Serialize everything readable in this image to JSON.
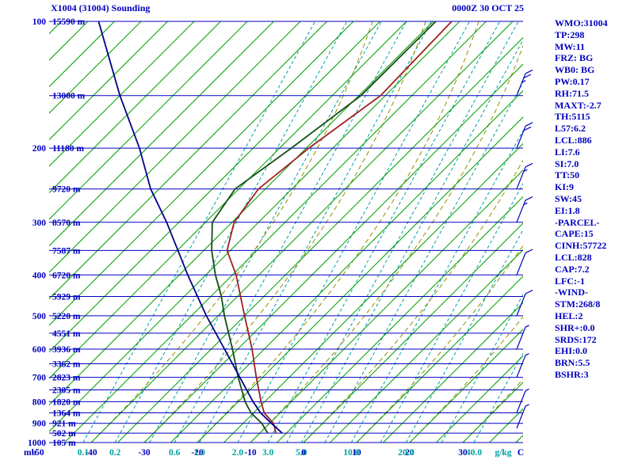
{
  "header": {
    "title": "X1004 (31004) Sounding",
    "datetime": "0000Z 30 OCT 25"
  },
  "stats": [
    "WMO:31004",
    "TP:298",
    "MW:11",
    "FRZ: BG",
    "WB0: BG",
    "PW:0.17",
    "RH:71.5",
    "MAXT:-2.7",
    "TH:5115",
    "L57:6.2",
    "LCL:886",
    "LI:7.6",
    "SI:7.0",
    "TT:50",
    "KI:9",
    "SW:45",
    "EI:1.8",
    "-PARCEL-",
    "CAPE:15",
    "CINH:57722",
    "LCL:828",
    "CAP:7.2",
    "LFC:-1",
    "-WIND-",
    "STM:268/8",
    "HEL:2",
    "SHR+:0.0",
    "SRDS:172",
    "EHI:0.0",
    "BRN:5.5",
    "BSHR:3"
  ],
  "axes": {
    "pressure_unit": "mb",
    "pressure_labels": [
      100,
      200,
      300,
      400,
      500,
      600,
      700,
      800,
      900,
      1000
    ],
    "pressure_levels": [
      100,
      150,
      200,
      250,
      300,
      350,
      400,
      450,
      500,
      550,
      600,
      650,
      700,
      750,
      800,
      850,
      900,
      950,
      1000
    ],
    "height_labels": [
      "15590 m",
      "13000 m",
      "11180 m",
      "9720 m",
      "8570 m",
      "7587 m",
      "6720 m",
      "5929 m",
      "5220 m",
      "4551 m",
      "3936 m",
      "3362 m",
      "2823 m",
      "2305 m",
      "1820 m",
      "1364 m",
      "921 m",
      "502 m",
      "105 m"
    ],
    "temp_unit": "C",
    "temp_labels": [
      -50,
      -40,
      -30,
      -20,
      -10,
      0,
      10,
      20,
      30
    ],
    "mixing_unit": "g/kg",
    "mixing_labels": [
      "0.1",
      "0.2",
      "0.6",
      "1.0",
      "2.0",
      "3.0",
      "5.0",
      "10.0",
      "20.0",
      "40.0"
    ]
  },
  "chart_data": {
    "type": "line",
    "subtype": "skewt-logp-sounding",
    "title": "X1004 (31004) Sounding",
    "x_axis": {
      "label": "Temperature (C)",
      "range": [
        -50,
        40
      ],
      "skewed": true
    },
    "y_axis": {
      "label": "Pressure (mb)",
      "range": [
        1000,
        100
      ],
      "scale": "log"
    },
    "grid": {
      "isobar_step_mb": 50,
      "isotherm_step_c": 5,
      "mixing_ratio_values_gkg": [
        "0.1",
        "0.2",
        "0.6",
        "1.0",
        "2.0",
        "3.0",
        "5.0",
        "10.0",
        "20.0",
        "40.0"
      ]
    },
    "series": [
      {
        "name": "temperature",
        "color": "#a02020",
        "points": [
          [
            950,
            -7.0
          ],
          [
            925,
            -8.1
          ],
          [
            900,
            -9.3
          ],
          [
            850,
            -13.0
          ],
          [
            800,
            -15.7
          ],
          [
            700,
            -21.2
          ],
          [
            600,
            -27.3
          ],
          [
            500,
            -35.0
          ],
          [
            400,
            -44.3
          ],
          [
            350,
            -50.6
          ],
          [
            300,
            -54.6
          ],
          [
            250,
            -56.3
          ],
          [
            200,
            -54.5
          ],
          [
            150,
            -50.9
          ],
          [
            100,
            -51.5
          ]
        ]
      },
      {
        "name": "dewpoint",
        "color": "#134d13",
        "points": [
          [
            950,
            -8.5
          ],
          [
            900,
            -11.5
          ],
          [
            850,
            -15.5
          ],
          [
            800,
            -18.7
          ],
          [
            700,
            -24.6
          ],
          [
            600,
            -31.0
          ],
          [
            500,
            -38.8
          ],
          [
            450,
            -43.0
          ],
          [
            400,
            -48.2
          ],
          [
            350,
            -53.5
          ],
          [
            300,
            -58.7
          ],
          [
            250,
            -60.7
          ],
          [
            200,
            -57.8
          ],
          [
            150,
            -54.6
          ],
          [
            100,
            -54.5
          ]
        ]
      },
      {
        "name": "reference-curve",
        "color": "#00008b",
        "points": [
          [
            950,
            -5.8
          ],
          [
            900,
            -9.7
          ],
          [
            850,
            -13.7
          ],
          [
            800,
            -17.2
          ],
          [
            700,
            -24.3
          ],
          [
            600,
            -32.5
          ],
          [
            500,
            -42.2
          ],
          [
            400,
            -53.4
          ],
          [
            300,
            -67.3
          ],
          [
            250,
            -76.6
          ],
          [
            200,
            -86.4
          ],
          [
            150,
            -100.0
          ],
          [
            100,
            -118.0
          ]
        ]
      }
    ],
    "wind_barbs": [
      {
        "p": 150,
        "speed_kt": 25
      },
      {
        "p": 200,
        "speed_kt": 20
      },
      {
        "p": 250,
        "speed_kt": 15
      },
      {
        "p": 300,
        "speed_kt": 15
      },
      {
        "p": 400,
        "speed_kt": 10
      },
      {
        "p": 500,
        "speed_kt": 10
      },
      {
        "p": 600,
        "speed_kt": 5
      },
      {
        "p": 700,
        "speed_kt": 5
      },
      {
        "p": 850,
        "speed_kt": 5
      },
      {
        "p": 925,
        "speed_kt": 5
      }
    ]
  },
  "colors": {
    "text_blue": "#0000c0",
    "isobar": "#0000c0",
    "isotherm": "#00a000",
    "mixing_ratio": "#00a0a0",
    "adiabat": "#909000",
    "barb": "#0000c0"
  }
}
